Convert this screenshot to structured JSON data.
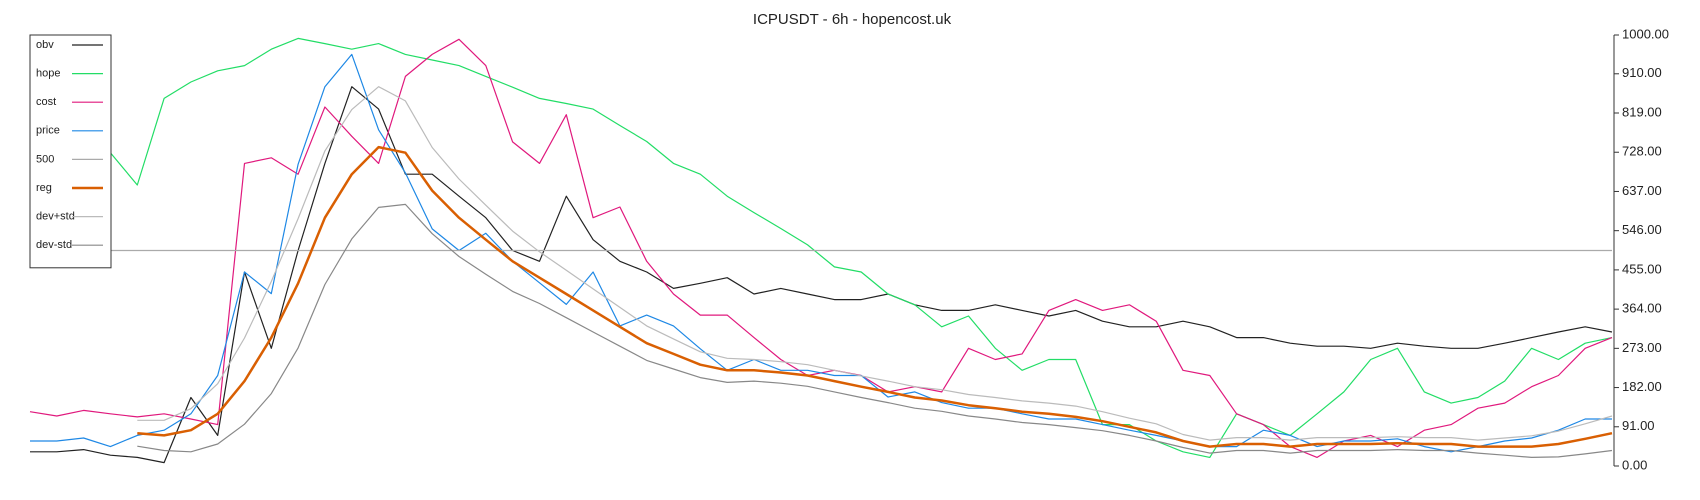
{
  "chart_data": {
    "type": "line",
    "title": "ICPUSDT - 6h - hopencost.uk",
    "ylim": [
      0,
      1000
    ],
    "yticks": [
      {
        "value": 0,
        "label": "0.00"
      },
      {
        "value": 91,
        "label": "91.00"
      },
      {
        "value": 182,
        "label": "182.00"
      },
      {
        "value": 273,
        "label": "273.00"
      },
      {
        "value": 364,
        "label": "364.00"
      },
      {
        "value": 455,
        "label": "455.00"
      },
      {
        "value": 546,
        "label": "546.00"
      },
      {
        "value": 637,
        "label": "637.00"
      },
      {
        "value": 728,
        "label": "728.00"
      },
      {
        "value": 819,
        "label": "819.00"
      },
      {
        "value": 910,
        "label": "910.00"
      },
      {
        "value": 1000,
        "label": "1000.00"
      }
    ],
    "legend": "upper left",
    "series": [
      {
        "name": "obv",
        "color": "#222222",
        "width": 1.2,
        "values": [
          33,
          33,
          38,
          25,
          20,
          8,
          159,
          71,
          450,
          273,
          500,
          702,
          880,
          828,
          677,
          677,
          626,
          576,
          500,
          475,
          626,
          525,
          475,
          450,
          412,
          424,
          437,
          399,
          412,
          399,
          386,
          386,
          399,
          374,
          361,
          361,
          374,
          361,
          348,
          361,
          336,
          323,
          323,
          336,
          323,
          298,
          298,
          285,
          278,
          278,
          273,
          285,
          278,
          273,
          273,
          285,
          298,
          311,
          323,
          311
        ]
      },
      {
        "name": "hope",
        "color": "#22dd66",
        "width": 1.2,
        "values": [
          null,
          null,
          null,
          727,
          652,
          853,
          891,
          917,
          929,
          967,
          992,
          980,
          967,
          980,
          955,
          942,
          929,
          904,
          879,
          853,
          841,
          828,
          790,
          753,
          702,
          677,
          626,
          588,
          551,
          513,
          462,
          450,
          399,
          374,
          323,
          348,
          273,
          222,
          247,
          247,
          96,
          96,
          58,
          33,
          20,
          121,
          96,
          71,
          121,
          172,
          247,
          273,
          172,
          146,
          159,
          197,
          273,
          247,
          285,
          298
        ]
      },
      {
        "name": "cost",
        "color": "#e0197d",
        "width": 1.2,
        "values": [
          126,
          116,
          129,
          121,
          114,
          121,
          109,
          96,
          702,
          715,
          677,
          833,
          765,
          702,
          904,
          955,
          990,
          929,
          752,
          702,
          815,
          576,
          601,
          475,
          399,
          350,
          350,
          298,
          247,
          210,
          222,
          210,
          172,
          184,
          172,
          273,
          247,
          260,
          361,
          386,
          361,
          374,
          336,
          222,
          210,
          121,
          96,
          45,
          20,
          58,
          71,
          45,
          83,
          96,
          134,
          146,
          184,
          210,
          273,
          298
        ]
      },
      {
        "name": "price",
        "color": "#1e88e5",
        "width": 1.2,
        "values": [
          58,
          58,
          65,
          45,
          71,
          83,
          121,
          210,
          450,
          400,
          700,
          880,
          955,
          780,
          680,
          550,
          500,
          540,
          475,
          425,
          375,
          450,
          325,
          350,
          325,
          272,
          222,
          247,
          222,
          222,
          210,
          210,
          160,
          172,
          147,
          134,
          134,
          121,
          109,
          109,
          96,
          83,
          71,
          58,
          45,
          45,
          83,
          71,
          45,
          58,
          58,
          63,
          45,
          33,
          45,
          58,
          65,
          83,
          109,
          109
        ]
      },
      {
        "name": "500",
        "color": "#aaaaaa",
        "width": 1.2,
        "values": [
          500,
          500,
          500,
          500,
          500,
          500,
          500,
          500,
          500,
          500,
          500,
          500,
          500,
          500,
          500,
          500,
          500,
          500,
          500,
          500,
          500,
          500,
          500,
          500,
          500,
          500,
          500,
          500,
          500,
          500,
          500,
          500,
          500,
          500,
          500,
          500,
          500,
          500,
          500,
          500,
          500,
          500,
          500,
          500,
          500,
          500,
          500,
          500,
          500,
          500,
          500,
          500,
          500,
          500,
          500,
          500,
          500,
          500,
          500,
          500
        ]
      },
      {
        "name": "reg",
        "color": "#d95f02",
        "width": 2.5,
        "values": [
          null,
          null,
          null,
          null,
          76,
          71,
          83,
          121,
          197,
          298,
          424,
          576,
          677,
          740,
          727,
          639,
          576,
          525,
          475,
          437,
          399,
          361,
          323,
          285,
          260,
          235,
          222,
          222,
          217,
          210,
          197,
          184,
          172,
          159,
          152,
          141,
          134,
          126,
          121,
          114,
          104,
          91,
          78,
          58,
          45,
          51,
          51,
          45,
          51,
          51,
          51,
          53,
          51,
          51,
          45,
          45,
          45,
          51,
          63,
          76
        ]
      },
      {
        "name": "dev+std",
        "color": "#bbbbbb",
        "width": 1.2,
        "values": [
          null,
          null,
          null,
          null,
          106,
          106,
          133,
          191,
          297,
          428,
          574,
          731,
          827,
          880,
          847,
          739,
          666,
          605,
          545,
          497,
          454,
          411,
          368,
          325,
          295,
          265,
          250,
          247,
          242,
          235,
          222,
          209,
          197,
          184,
          177,
          166,
          159,
          151,
          146,
          139,
          126,
          111,
          98,
          73,
          60,
          66,
          66,
          60,
          66,
          66,
          66,
          68,
          66,
          66,
          60,
          65,
          70,
          81,
          98,
          116
        ]
      },
      {
        "name": "dev-std",
        "color": "#888888",
        "width": 1.2,
        "values": [
          null,
          null,
          null,
          null,
          46,
          36,
          33,
          51,
          97,
          168,
          274,
          421,
          527,
          600,
          607,
          539,
          486,
          445,
          405,
          377,
          344,
          311,
          278,
          245,
          225,
          205,
          194,
          197,
          192,
          185,
          172,
          159,
          147,
          134,
          127,
          116,
          109,
          101,
          96,
          89,
          82,
          71,
          58,
          43,
          30,
          36,
          36,
          30,
          36,
          36,
          36,
          38,
          36,
          36,
          30,
          25,
          20,
          21,
          28,
          36
        ]
      }
    ]
  }
}
